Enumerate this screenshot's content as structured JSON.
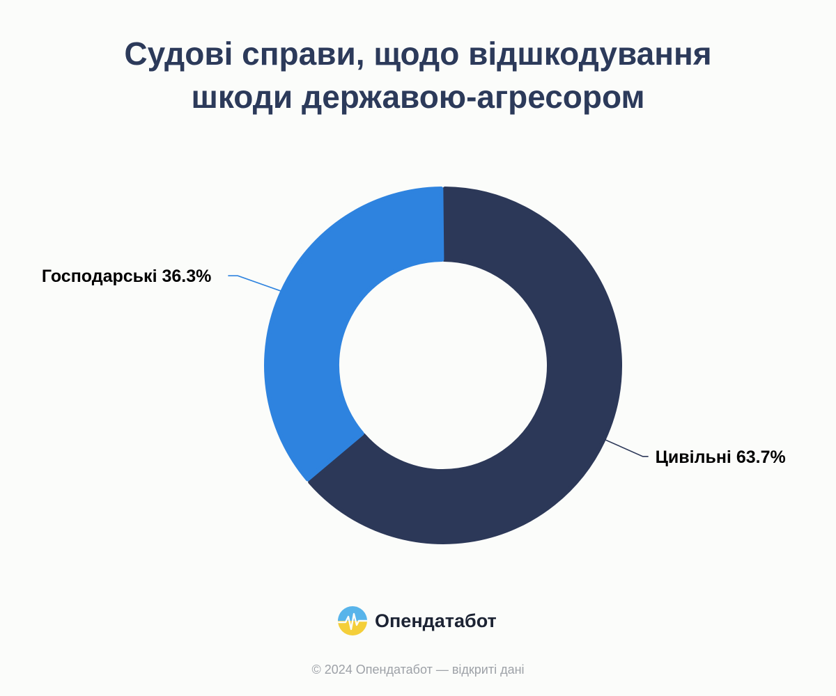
{
  "chart_data": {
    "type": "pie",
    "variant": "donut",
    "title_lines": [
      "Судові справи, щодо відшкодування",
      "шкоди державою-агресором"
    ],
    "slices": [
      {
        "name": "Цивільні",
        "label": "Цивільні 63.7%",
        "value": 63.7,
        "color": "#2c3858"
      },
      {
        "name": "Господарські",
        "label": "Господарські 36.3%",
        "value": 36.3,
        "color": "#2e83df"
      }
    ]
  },
  "brand": {
    "name": "Опендатабот",
    "logo_icon": "opendatabot-logo-icon"
  },
  "footer": {
    "text": "© 2024 Опендатабот — відкриті дані"
  }
}
